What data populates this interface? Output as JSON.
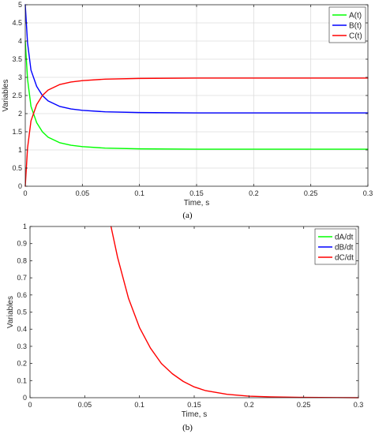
{
  "chart_data": [
    {
      "type": "line",
      "caption": "(a)",
      "xlabel": "Time, s",
      "ylabel": "Variables",
      "xlim": [
        0,
        0.3
      ],
      "ylim": [
        0,
        5
      ],
      "x_ticks": [
        0,
        0.05,
        0.1,
        0.15,
        0.2,
        0.25,
        0.3
      ],
      "x_tick_labels": [
        "0",
        "0.05",
        "0.1",
        "0.15",
        "0.2",
        "0.25",
        "0.3"
      ],
      "y_ticks": [
        0,
        0.5,
        1,
        1.5,
        2,
        2.5,
        3,
        3.5,
        4,
        4.5,
        5
      ],
      "y_tick_labels": [
        "0",
        "0.5",
        "1",
        "1.5",
        "2",
        "2.5",
        "3",
        "3.5",
        "4",
        "4.5",
        "5"
      ],
      "grid": true,
      "legend_position": "top-right",
      "series": [
        {
          "name": "A(t)",
          "color": "#00ff00",
          "x": [
            0,
            0.002,
            0.005,
            0.01,
            0.015,
            0.02,
            0.03,
            0.04,
            0.05,
            0.07,
            0.1,
            0.15,
            0.2,
            0.25,
            0.3
          ],
          "y": [
            4.0,
            2.95,
            2.2,
            1.75,
            1.5,
            1.35,
            1.2,
            1.13,
            1.09,
            1.05,
            1.03,
            1.02,
            1.02,
            1.02,
            1.02
          ]
        },
        {
          "name": "B(t)",
          "color": "#0000ff",
          "x": [
            0,
            0.002,
            0.005,
            0.01,
            0.015,
            0.02,
            0.03,
            0.04,
            0.05,
            0.07,
            0.1,
            0.15,
            0.2,
            0.25,
            0.3
          ],
          "y": [
            5.0,
            3.95,
            3.2,
            2.75,
            2.5,
            2.35,
            2.2,
            2.13,
            2.09,
            2.05,
            2.03,
            2.02,
            2.02,
            2.02,
            2.02
          ]
        },
        {
          "name": "C(t)",
          "color": "#ff0000",
          "x": [
            0,
            0.002,
            0.005,
            0.01,
            0.015,
            0.02,
            0.03,
            0.04,
            0.05,
            0.07,
            0.1,
            0.15,
            0.2,
            0.25,
            0.3
          ],
          "y": [
            0,
            1.05,
            1.8,
            2.25,
            2.5,
            2.65,
            2.8,
            2.87,
            2.91,
            2.95,
            2.97,
            2.98,
            2.98,
            2.98,
            2.98
          ]
        }
      ]
    },
    {
      "type": "line",
      "caption": "(b)",
      "xlabel": "Time, s",
      "ylabel": "Variables",
      "xlim": [
        0,
        0.3
      ],
      "ylim": [
        0,
        1
      ],
      "x_ticks": [
        0,
        0.05,
        0.1,
        0.15,
        0.2,
        0.25,
        0.3
      ],
      "x_tick_labels": [
        "0",
        "0.05",
        "0.1",
        "0.15",
        "0.2",
        "0.25",
        "0.3"
      ],
      "y_ticks": [
        0,
        0.1,
        0.2,
        0.3,
        0.4,
        0.5,
        0.6,
        0.7,
        0.8,
        0.9,
        1
      ],
      "y_tick_labels": [
        "0",
        "0.1",
        "0.2",
        "0.3",
        "0.4",
        "0.5",
        "0.6",
        "0.7",
        "0.8",
        "0.9",
        "1"
      ],
      "grid": false,
      "legend_position": "top-right",
      "series": [
        {
          "name": "dA/dt",
          "color": "#00ff00",
          "x": [],
          "y": []
        },
        {
          "name": "dB/dt",
          "color": "#0000ff",
          "x": [],
          "y": []
        },
        {
          "name": "dC/dt",
          "color": "#ff0000",
          "x": [
            0.074,
            0.08,
            0.09,
            0.1,
            0.11,
            0.12,
            0.13,
            0.14,
            0.15,
            0.16,
            0.18,
            0.2,
            0.22,
            0.25,
            0.28,
            0.3
          ],
          "y": [
            1.0,
            0.82,
            0.58,
            0.41,
            0.29,
            0.2,
            0.14,
            0.095,
            0.063,
            0.042,
            0.02,
            0.009,
            0.005,
            0.002,
            0.001,
            0.0
          ]
        }
      ]
    }
  ]
}
